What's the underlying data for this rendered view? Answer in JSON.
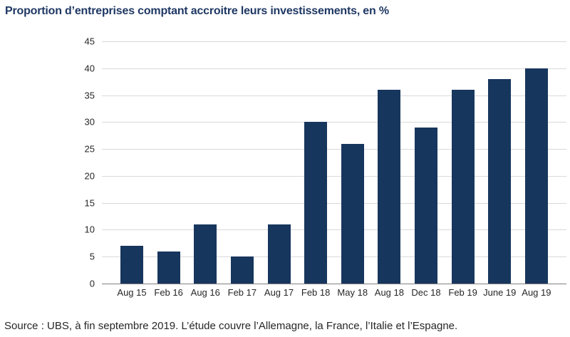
{
  "title": "Proportion d’entreprises comptant accroitre leurs investissements, en %",
  "source": "Source : UBS, à fin septembre 2019. L’étude couvre l’Allemagne, la France, l’Italie et l’Espagne.",
  "colors": {
    "bar": "#17365d",
    "title": "#1f3864",
    "gridline": "#d9d9d9",
    "axis": "#808080",
    "text": "#262626"
  },
  "chart_data": {
    "type": "bar",
    "categories": [
      "Aug 15",
      "Feb 16",
      "Aug 16",
      "Feb 17",
      "Aug 17",
      "Feb 18",
      "May 18",
      "Aug 18",
      "Dec 18",
      "Feb 19",
      "June 19",
      "Aug 19"
    ],
    "values": [
      7,
      6,
      11,
      5,
      11,
      30,
      26,
      36,
      29,
      36,
      38,
      40
    ],
    "title": "Proportion d’entreprises comptant accroitre leurs investissements, en %",
    "xlabel": "",
    "ylabel": "",
    "ylim": [
      0,
      45
    ],
    "ytick_step": 5,
    "grid": true,
    "legend": false,
    "note": "Source : UBS, à fin septembre 2019. L’étude couvre l’Allemagne, la France, l’Italie et l’Espagne."
  }
}
